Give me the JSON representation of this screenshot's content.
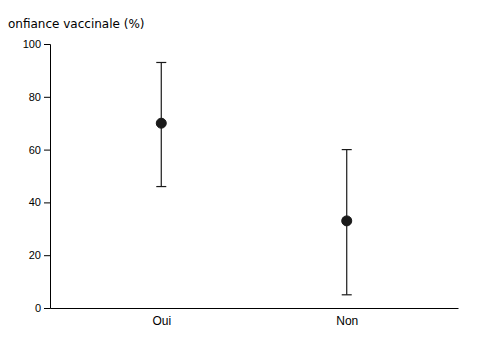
{
  "chart_data": {
    "type": "errorbar",
    "ylabel": "onfiance vaccinale (%)",
    "categories": [
      "Oui",
      "Non"
    ],
    "values": [
      70,
      33
    ],
    "lower_errors": [
      24,
      28
    ],
    "upper_errors": [
      23,
      27
    ],
    "color": "#1a1a1a",
    "ylim": [
      0,
      100
    ],
    "yticks": [
      0,
      20,
      40,
      60,
      80,
      100
    ],
    "grid": false
  }
}
